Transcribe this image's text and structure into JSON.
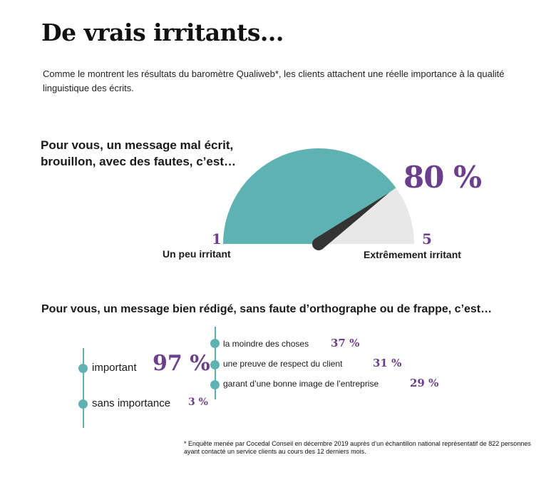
{
  "title": "De vrais irritants...",
  "intro": "Comme le montrent les résultats du baromètre Qualiweb*, les clients attachent une réelle importance à la qualité linguistique des écrits.",
  "colors": {
    "teal": "#5fb2b2",
    "purple": "#6b3f8c",
    "grey": "#e8e8e8",
    "needle": "#333333"
  },
  "chart_data": [
    {
      "type": "gauge",
      "question": "Pour vous, un message mal écrit, brouillon, avec des fautes, c’est…",
      "scale_min": 1,
      "scale_max": 5,
      "scale_min_text": "1",
      "scale_max_text": "5",
      "min_label": "Un peu irritant",
      "max_label": "Extrêmement irritant",
      "value_percent": 80,
      "value_label": "80 %"
    },
    {
      "type": "bar",
      "question": "Pour vous, un message bien rédigé, sans faute d’orthographe ou de frappe, c’est…",
      "items": [
        {
          "label": "important",
          "value": 97,
          "value_label": "97 %"
        },
        {
          "label": "sans importance",
          "value": 3,
          "value_label": "3 %"
        }
      ],
      "sub_items": [
        {
          "label": "la moindre des choses",
          "value": 37,
          "value_label": "37 %"
        },
        {
          "label": "une preuve de respect du client",
          "value": 31,
          "value_label": "31 %"
        },
        {
          "label": "garant d’une bonne image de l’entreprise",
          "value": 29,
          "value_label": "29 %"
        }
      ]
    }
  ],
  "footnote": "* Enquête menée par Cocedal Conseil en décembre 2019 auprès d’un échantillon national représentatif de 822 personnes ayant contacté un service clients au cours des 12 derniers mois."
}
